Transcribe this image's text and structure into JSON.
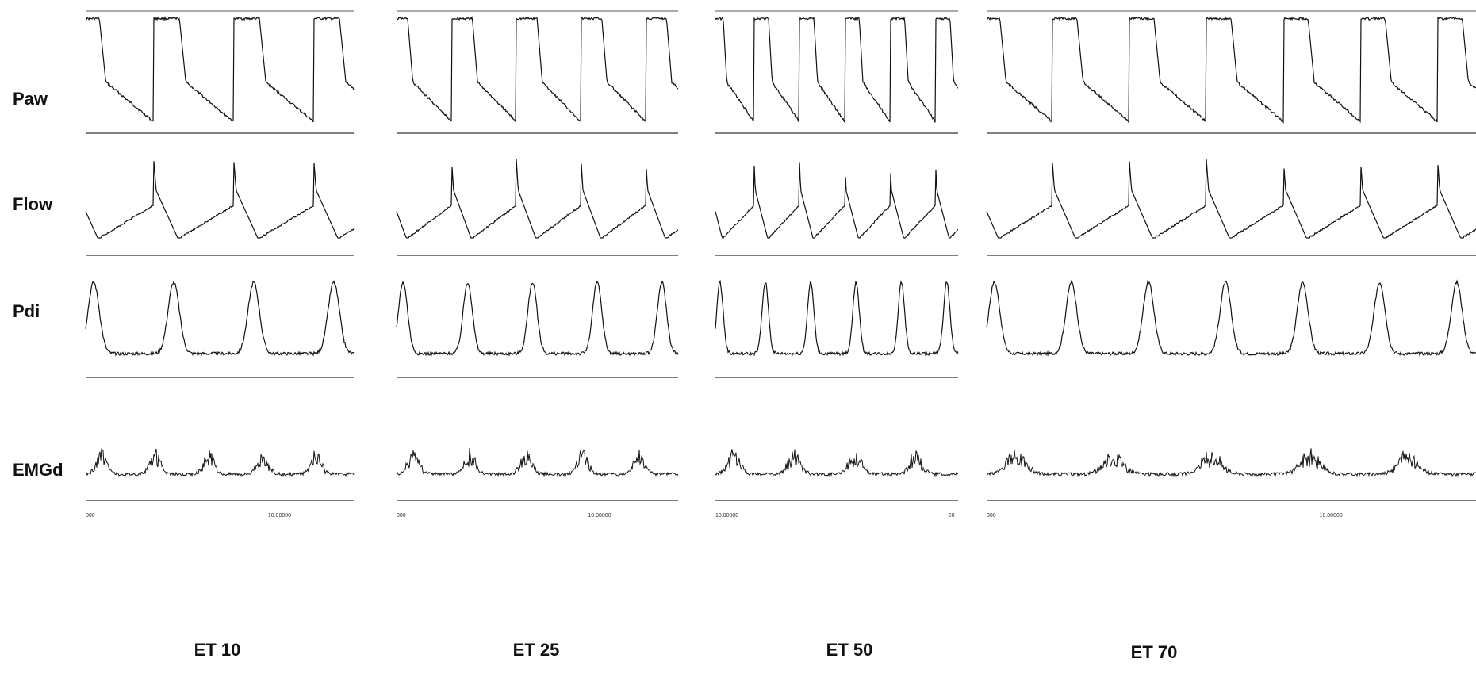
{
  "chart_data": {
    "type": "line",
    "row_labels": [
      "Paw",
      "Flow",
      "Pdi",
      "EMGd"
    ],
    "panels": [
      {
        "title": "ET 10",
        "axis_ticks": [
          "000",
          "10.00000"
        ],
        "breath_count": 3,
        "traces": {
          "Paw": "square-pressure",
          "Flow": "decelerating-flow",
          "Pdi": "inspiratory-peaks",
          "EMGd": "burst-activity"
        },
        "emg_bursts": 5
      },
      {
        "title": "ET 25",
        "axis_ticks": [
          "000",
          "10.00000"
        ],
        "breath_count": 4,
        "traces": {
          "Paw": "square-pressure",
          "Flow": "decelerating-flow",
          "Pdi": "inspiratory-peaks",
          "EMGd": "burst-activity"
        },
        "emg_bursts": 5
      },
      {
        "title": "ET 50",
        "axis_ticks": [
          "10.00000",
          "20"
        ],
        "breath_count": 5,
        "traces": {
          "Paw": "square-pressure",
          "Flow": "decelerating-flow",
          "Pdi": "inspiratory-peaks",
          "EMGd": "burst-activity"
        },
        "emg_bursts": 4
      },
      {
        "title": "ET 70",
        "axis_ticks": [
          "000",
          "10.00000"
        ],
        "breath_count": 6,
        "traces": {
          "Paw": "square-pressure",
          "Flow": "decelerating-flow",
          "Pdi": "inspiratory-peaks",
          "EMGd": "burst-activity"
        },
        "emg_bursts": 5
      }
    ]
  }
}
